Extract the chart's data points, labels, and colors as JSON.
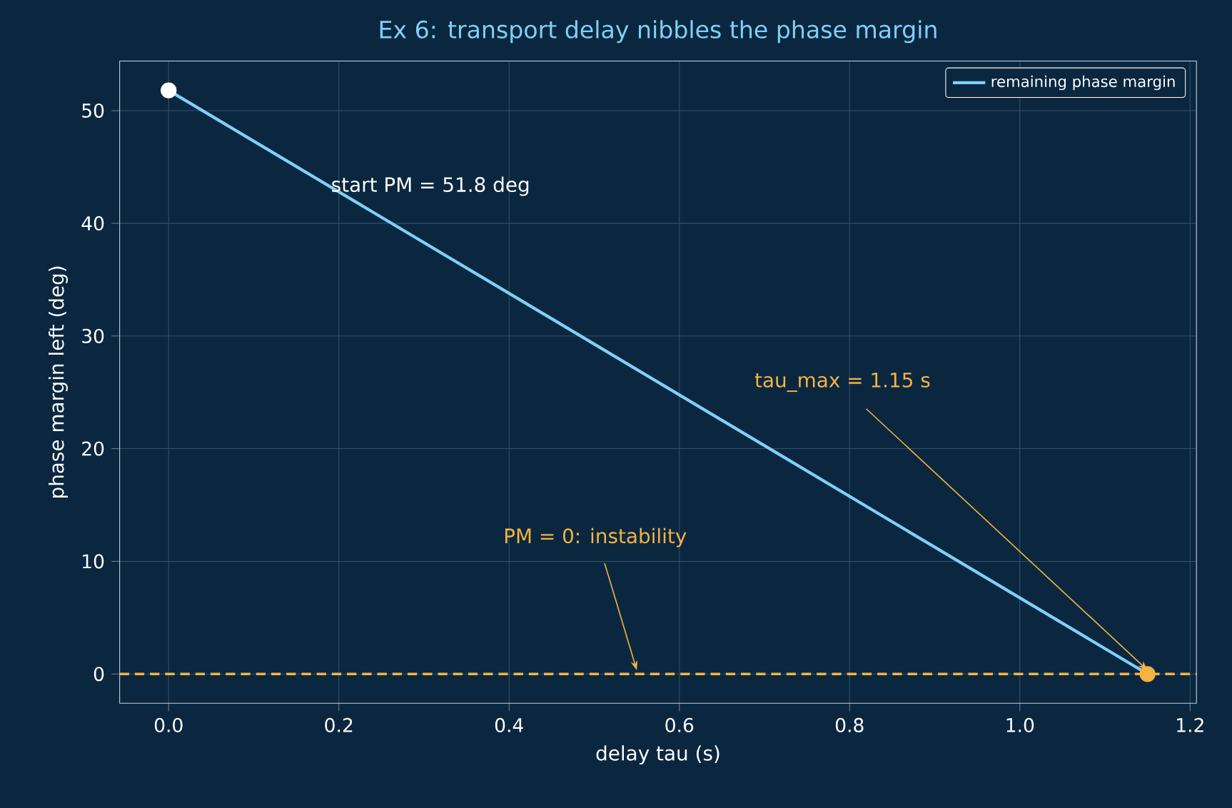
{
  "chart_data": {
    "type": "line",
    "title": "Ex 6: transport delay nibbles the phase margin",
    "xlabel": "delay tau (s)",
    "ylabel": "phase margin left (deg)",
    "x": [
      0,
      1.15
    ],
    "series": [
      {
        "name": "remaining phase margin",
        "color": "#7fd0f8",
        "values": [
          51.8,
          0
        ],
        "marker": "none"
      },
      {
        "type": "scatter",
        "color": "#ffffff",
        "x": [
          0
        ],
        "values": [
          51.8
        ],
        "marker": "circle"
      },
      {
        "type": "scatter",
        "color": "#f5b342",
        "x": [
          1.15
        ],
        "values": [
          0
        ],
        "marker": "circle"
      }
    ],
    "xlim": [
      -0.0575,
      1.2075
    ],
    "ylim": [
      -2.59,
      54.4
    ],
    "xticks": [
      {
        "value": 0,
        "label": "0.0"
      },
      0.2,
      0.4,
      0.6,
      0.8,
      {
        "value": 1,
        "label": "1.0"
      },
      1.2
    ],
    "yticks": [
      0,
      10,
      20,
      30,
      40,
      50
    ],
    "grid": true,
    "legend": "top right",
    "ref_lines": [
      {
        "axis": "y",
        "value": 0,
        "color": "#f5b342",
        "line_style": "dashed"
      }
    ],
    "annotations": [
      "start PM = 51.8 deg",
      {
        "text": "tau_max = 1.15 s",
        "x": 1.15,
        "y": 0
      },
      {
        "text": "PM = 0: instability",
        "x": 0.55,
        "y": 0
      }
    ]
  }
}
